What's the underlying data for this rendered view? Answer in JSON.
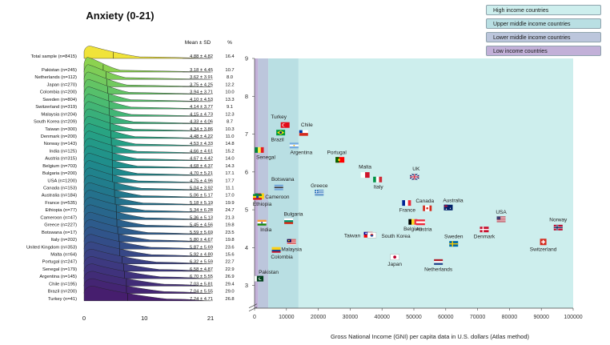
{
  "title": "Anxiety (0-21)",
  "legend": [
    {
      "label": "High income countries",
      "color": "#cdeeed"
    },
    {
      "label": "Upper middle income countries",
      "color": "#b9dfe3"
    },
    {
      "label": "Lower middle income countries",
      "color": "#bcc6dc"
    },
    {
      "label": "Low income countries",
      "color": "#c2b0d8"
    }
  ],
  "chart_data": [
    {
      "type": "ridgeline",
      "column_headers": {
        "mean_sd": "Mean ± SD",
        "pct": "%"
      },
      "xlim": [
        0,
        21
      ],
      "xticks": [
        "0",
        "10",
        "21"
      ],
      "rows": [
        {
          "label": "Total sample (n=8415)",
          "mean_sd": "4.88 ± 4.82",
          "pct": "16.4",
          "mean": 4.88,
          "color": "#f0e33a"
        },
        {
          "label": "Pakistan (n=245)",
          "mean_sd": "3.18 ± 4.45",
          "pct": "10.7",
          "mean": 3.18
        },
        {
          "label": "Netherlands (n=112)",
          "mean_sd": "3.62 ± 3.91",
          "pct": "8.0",
          "mean": 3.62
        },
        {
          "label": "Japan (n=270)",
          "mean_sd": "3.75 ± 4.25",
          "pct": "12.2",
          "mean": 3.75
        },
        {
          "label": "Colombia (n=200)",
          "mean_sd": "3.94 ± 3.71",
          "pct": "10.0",
          "mean": 3.94
        },
        {
          "label": "Sweden (n=804)",
          "mean_sd": "4.10 ± 4.53",
          "pct": "13.3",
          "mean": 4.1
        },
        {
          "label": "Switzerland (n=319)",
          "mean_sd": "4.14 ± 3.77",
          "pct": "9.1",
          "mean": 4.14
        },
        {
          "label": "Malaysia (n=204)",
          "mean_sd": "4.15 ± 4.73",
          "pct": "12.3",
          "mean": 4.15
        },
        {
          "label": "South Korea (n=209)",
          "mean_sd": "4.33 ± 4.06",
          "pct": "8.7",
          "mean": 4.33
        },
        {
          "label": "Taiwan (n=300)",
          "mean_sd": "4.34 ± 3.86",
          "pct": "10.3",
          "mean": 4.34
        },
        {
          "label": "Denmark (n=200)",
          "mean_sd": "4.48 ± 4.22",
          "pct": "11.0",
          "mean": 4.48
        },
        {
          "label": "Norway (n=143)",
          "mean_sd": "4.53 ± 4.33",
          "pct": "14.8",
          "mean": 4.53
        },
        {
          "label": "India (n=125)",
          "mean_sd": "4.66 ± 4.61",
          "pct": "15.2",
          "mean": 4.66
        },
        {
          "label": "Austria (n=315)",
          "mean_sd": "4.67 ± 4.42",
          "pct": "14.0",
          "mean": 4.67
        },
        {
          "label": "Belgium (n=703)",
          "mean_sd": "4.68 ± 4.37",
          "pct": "14.3",
          "mean": 4.68
        },
        {
          "label": "Bulgaria (n=200)",
          "mean_sd": "4.70 ± 5.21",
          "pct": "17.1",
          "mean": 4.7
        },
        {
          "label": "USA (n=1200)",
          "mean_sd": "4.75 ± 4.96",
          "pct": "17.7",
          "mean": 4.75
        },
        {
          "label": "Canada (n=153)",
          "mean_sd": "5.04 ± 3.92",
          "pct": "11.1",
          "mean": 5.04
        },
        {
          "label": "Australia (n=184)",
          "mean_sd": "5.06 ± 5.17",
          "pct": "17.0",
          "mean": 5.06
        },
        {
          "label": "France (n=535)",
          "mean_sd": "5.18 ± 5.19",
          "pct": "19.9",
          "mean": 5.18
        },
        {
          "label": "Ethiopia (n=77)",
          "mean_sd": "5.34 ± 6.28",
          "pct": "24.7",
          "mean": 5.34
        },
        {
          "label": "Cameroon (n=47)",
          "mean_sd": "5.36 ± 5.13",
          "pct": "21.3",
          "mean": 5.36
        },
        {
          "label": "Greece (n=227)",
          "mean_sd": "5.45 ± 4.56",
          "pct": "19.8",
          "mean": 5.45
        },
        {
          "label": "Botswana (n=17)",
          "mean_sd": "5.59 ± 5.69",
          "pct": "23.5",
          "mean": 5.59
        },
        {
          "label": "Italy (n=202)",
          "mean_sd": "5.80 ± 4.67",
          "pct": "19.8",
          "mean": 5.8
        },
        {
          "label": "United Kingdom (n=353)",
          "mean_sd": "5.87 ± 5.69",
          "pct": "23.6",
          "mean": 5.87
        },
        {
          "label": "Malta (n=64)",
          "mean_sd": "5.92 ± 4.80",
          "pct": "15.6",
          "mean": 5.92
        },
        {
          "label": "Portugal (n=247)",
          "mean_sd": "6.32 ± 5.59",
          "pct": "22.7",
          "mean": 6.32
        },
        {
          "label": "Senegal (n=179)",
          "mean_sd": "6.58 ± 4.87",
          "pct": "22.9",
          "mean": 6.58
        },
        {
          "label": "Argentina (n=145)",
          "mean_sd": "6.70 ± 5.55",
          "pct": "26.9",
          "mean": 6.7
        },
        {
          "label": "Chile (n=195)",
          "mean_sd": "7.03 ± 5.81",
          "pct": "29.4",
          "mean": 7.03
        },
        {
          "label": "Brazil (n=200)",
          "mean_sd": "7.04 ± 5.55",
          "pct": "29.0",
          "mean": 7.04
        },
        {
          "label": "Turkey (n=41)",
          "mean_sd": "7.24 ± 4.71",
          "pct": "26.8",
          "mean": 7.24
        }
      ]
    },
    {
      "type": "scatter",
      "xlabel": "Gross National Income (GNI) per capita data in U.S. dollars (Atlas method)",
      "ylabel": "",
      "xlim": [
        0,
        100000
      ],
      "ylim": [
        3,
        9
      ],
      "xticks": [
        0,
        10000,
        20000,
        30000,
        40000,
        50000,
        60000,
        70000,
        80000,
        90000,
        100000
      ],
      "yticks": [
        3,
        4,
        5,
        6,
        7,
        8,
        9
      ],
      "ytick_labels": [
        "3",
        "4",
        "5",
        "6",
        "7",
        "8",
        "9"
      ],
      "xtick_labels": [
        "0",
        "10000",
        "20000",
        "30000",
        "40000",
        "50000",
        "60000",
        "70000",
        "80000",
        "90000",
        "100000"
      ],
      "axis_break": true,
      "income_bands": [
        {
          "group": "Low income countries",
          "from": 0,
          "to": 1100,
          "color": "#c2b0d8"
        },
        {
          "group": "Lower middle income countries",
          "from": 1100,
          "to": 4300,
          "color": "#bcc6dc"
        },
        {
          "group": "Upper middle income countries",
          "from": 4300,
          "to": 13800,
          "color": "#b9dfe3"
        },
        {
          "group": "High income countries",
          "from": 13800,
          "to": 100000,
          "color": "#cdeeed"
        }
      ],
      "points": [
        {
          "name": "Turkey",
          "x": 9600,
          "y": 7.24,
          "flag": "turkey"
        },
        {
          "name": "Chile",
          "x": 15400,
          "y": 7.03,
          "flag": "chile"
        },
        {
          "name": "Brazil",
          "x": 8200,
          "y": 7.04,
          "flag": "brazil"
        },
        {
          "name": "Argentina",
          "x": 12400,
          "y": 6.7,
          "flag": "argentina"
        },
        {
          "name": "Senegal",
          "x": 1500,
          "y": 6.58,
          "flag": "senegal"
        },
        {
          "name": "Portugal",
          "x": 26800,
          "y": 6.32,
          "flag": "portugal"
        },
        {
          "name": "Malta",
          "x": 34700,
          "y": 5.92,
          "flag": "malta"
        },
        {
          "name": "UK",
          "x": 50200,
          "y": 5.87,
          "flag": "uk"
        },
        {
          "name": "Italy",
          "x": 38600,
          "y": 5.8,
          "flag": "italy"
        },
        {
          "name": "Botswana",
          "x": 7600,
          "y": 5.59,
          "flag": "botswana"
        },
        {
          "name": "Greece",
          "x": 20300,
          "y": 5.45,
          "flag": "greece"
        },
        {
          "name": "Cameroon",
          "x": 1600,
          "y": 5.36,
          "flag": "cameroon"
        },
        {
          "name": "Ethiopia",
          "x": 900,
          "y": 5.34,
          "flag": "ethiopia"
        },
        {
          "name": "France",
          "x": 47700,
          "y": 5.18,
          "flag": "france"
        },
        {
          "name": "Australia",
          "x": 60800,
          "y": 5.06,
          "flag": "australia"
        },
        {
          "name": "Canada",
          "x": 54200,
          "y": 5.04,
          "flag": "canada"
        },
        {
          "name": "USA",
          "x": 77400,
          "y": 4.75,
          "flag": "usa"
        },
        {
          "name": "Bulgaria",
          "x": 10700,
          "y": 4.7,
          "flag": "bulgaria"
        },
        {
          "name": "Belgium",
          "x": 49700,
          "y": 4.68,
          "flag": "belgium"
        },
        {
          "name": "Austria",
          "x": 52100,
          "y": 4.67,
          "flag": "austria"
        },
        {
          "name": "India",
          "x": 2300,
          "y": 4.66,
          "flag": "india"
        },
        {
          "name": "Norway",
          "x": 95300,
          "y": 4.53,
          "flag": "norway"
        },
        {
          "name": "Denmark",
          "x": 72100,
          "y": 4.48,
          "flag": "denmark"
        },
        {
          "name": "Taiwan",
          "x": 35700,
          "y": 4.34,
          "flag": "taiwan"
        },
        {
          "name": "South Korea",
          "x": 36800,
          "y": 4.33,
          "flag": "south-korea"
        },
        {
          "name": "Malaysia",
          "x": 11600,
          "y": 4.15,
          "flag": "malaysia"
        },
        {
          "name": "Switzerland",
          "x": 90600,
          "y": 4.14,
          "flag": "switzerland"
        },
        {
          "name": "Sweden",
          "x": 62500,
          "y": 4.1,
          "flag": "sweden"
        },
        {
          "name": "Colombia",
          "x": 6800,
          "y": 3.94,
          "flag": "colombia"
        },
        {
          "name": "Japan",
          "x": 44000,
          "y": 3.75,
          "flag": "japan"
        },
        {
          "name": "Netherlands",
          "x": 57700,
          "y": 3.62,
          "flag": "netherlands"
        },
        {
          "name": "Pakistan",
          "x": 1400,
          "y": 3.18,
          "flag": "pakistan"
        }
      ]
    }
  ]
}
